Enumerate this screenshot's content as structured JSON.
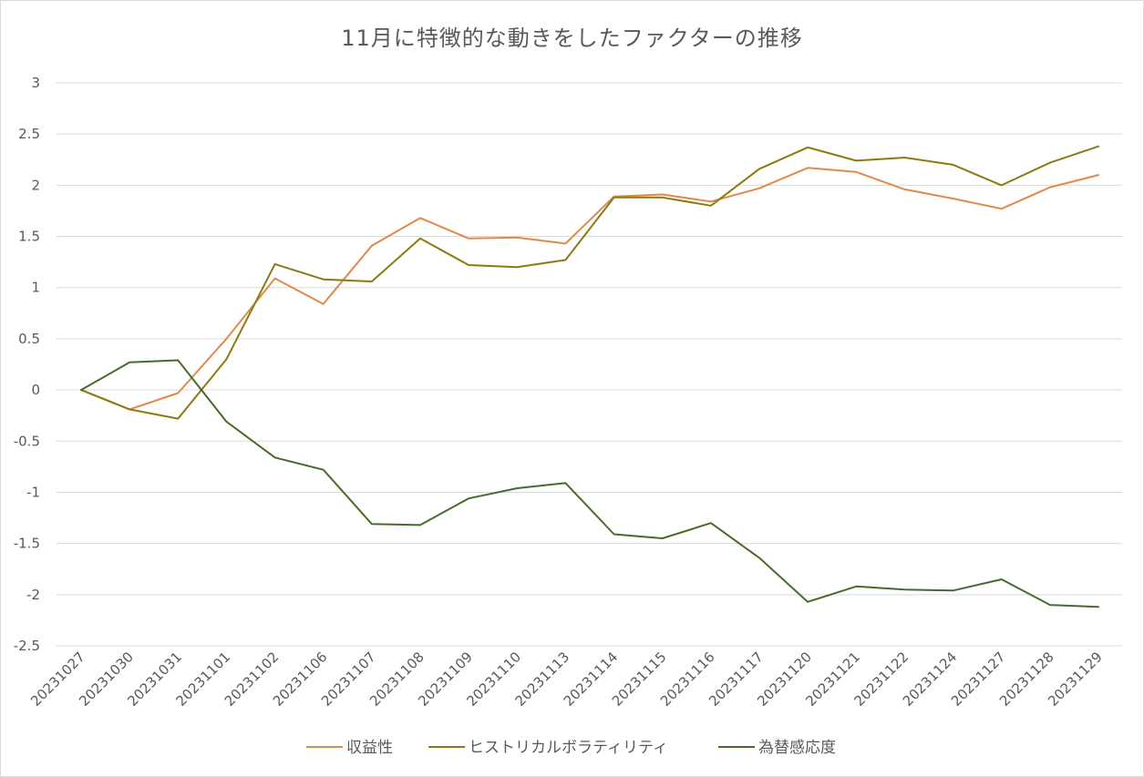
{
  "chart_data": {
    "type": "line",
    "title": "11月に特徴的な動きをしたファクターの推移",
    "ylim": [
      -2.5,
      3
    ],
    "yticks": [
      "3",
      "2.5",
      "2",
      "1.5",
      "1",
      "0.5",
      "0",
      "-0.5",
      "-1",
      "-1.5",
      "-2",
      "-2.5"
    ],
    "grid": true,
    "legend_position": "bottom",
    "categories": [
      "20231027",
      "20231030",
      "20231031",
      "20231101",
      "20231102",
      "20231106",
      "20231107",
      "20231108",
      "20231109",
      "20231110",
      "20231113",
      "20231114",
      "20231115",
      "20231116",
      "20231117",
      "20231120",
      "20231121",
      "20231122",
      "20231124",
      "20231127",
      "20231128",
      "20231129"
    ],
    "series": [
      {
        "name": "収益性",
        "color": "#e2894a",
        "values": [
          0,
          -0.19,
          -0.03,
          0.5,
          1.09,
          0.84,
          1.41,
          1.68,
          1.48,
          1.49,
          1.43,
          1.89,
          1.91,
          1.84,
          1.97,
          2.17,
          2.13,
          1.96,
          1.87,
          1.77,
          1.98,
          2.1
        ]
      },
      {
        "name": "ヒストリカルボラティリティ",
        "color": "#8c7a0e",
        "values": [
          0,
          -0.19,
          -0.28,
          0.3,
          1.23,
          1.08,
          1.06,
          1.48,
          1.22,
          1.2,
          1.27,
          1.88,
          1.88,
          1.8,
          2.16,
          2.37,
          2.24,
          2.27,
          2.2,
          2.0,
          2.22,
          2.38
        ]
      },
      {
        "name": "為替感応度",
        "color": "#4a6a2c",
        "values": [
          0,
          0.27,
          0.29,
          -0.31,
          -0.66,
          -0.78,
          -1.31,
          -1.32,
          -1.06,
          -0.96,
          -0.91,
          -1.41,
          -1.45,
          -1.3,
          -1.64,
          -2.07,
          -1.92,
          -1.95,
          -1.96,
          -1.85,
          -2.1,
          -2.12
        ]
      }
    ]
  }
}
